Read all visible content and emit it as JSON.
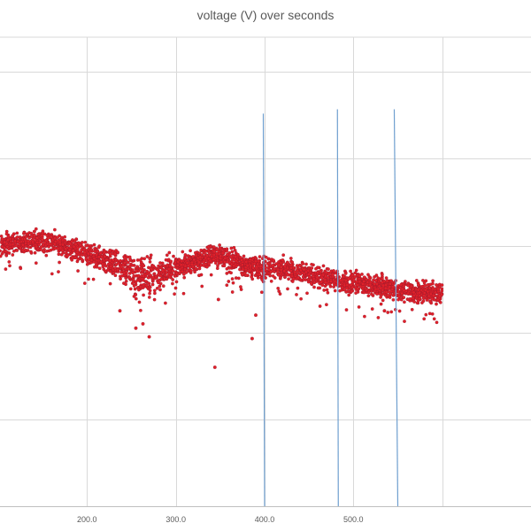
{
  "chart_data": {
    "type": "scatter",
    "title": "voltage (V) over seconds",
    "xlabel": "",
    "ylabel": "",
    "xlim": [
      102,
      700
    ],
    "ylim": [
      0,
      5.4
    ],
    "x_tick_labels": [
      {
        "value": 200,
        "label": "200.0"
      },
      {
        "value": 300,
        "label": "300.0"
      },
      {
        "value": 400,
        "label": "400.0"
      },
      {
        "value": 500,
        "label": "500.0"
      }
    ],
    "x_gridlines": [
      100,
      200,
      300,
      400,
      500,
      600
    ],
    "y_gridlines": [
      1,
      2,
      3,
      4,
      5
    ],
    "grid": true,
    "legend": "none",
    "series": [
      {
        "color": "#e0202a",
        "marker": "circle",
        "band": [
          {
            "x": 102,
            "y": 3.0,
            "spread": 0.12
          },
          {
            "x": 130,
            "y": 3.04,
            "spread": 0.12
          },
          {
            "x": 160,
            "y": 3.04,
            "spread": 0.12
          },
          {
            "x": 180,
            "y": 2.98,
            "spread": 0.12
          },
          {
            "x": 210,
            "y": 2.88,
            "spread": 0.12
          },
          {
            "x": 235,
            "y": 2.78,
            "spread": 0.14
          },
          {
            "x": 255,
            "y": 2.66,
            "spread": 0.22
          },
          {
            "x": 272,
            "y": 2.62,
            "spread": 0.22
          },
          {
            "x": 290,
            "y": 2.72,
            "spread": 0.14
          },
          {
            "x": 320,
            "y": 2.82,
            "spread": 0.12
          },
          {
            "x": 342,
            "y": 2.9,
            "spread": 0.12
          },
          {
            "x": 360,
            "y": 2.83,
            "spread": 0.12
          },
          {
            "x": 390,
            "y": 2.75,
            "spread": 0.12
          },
          {
            "x": 420,
            "y": 2.73,
            "spread": 0.12
          },
          {
            "x": 470,
            "y": 2.62,
            "spread": 0.12
          },
          {
            "x": 520,
            "y": 2.55,
            "spread": 0.12
          },
          {
            "x": 560,
            "y": 2.48,
            "spread": 0.12
          },
          {
            "x": 600,
            "y": 2.45,
            "spread": 0.12
          }
        ],
        "outliers": [
          {
            "x": 344,
            "y": 1.6
          },
          {
            "x": 386,
            "y": 1.93
          },
          {
            "x": 270,
            "y": 1.95
          },
          {
            "x": 255,
            "y": 2.05
          },
          {
            "x": 263,
            "y": 2.1
          },
          {
            "x": 237,
            "y": 2.25
          },
          {
            "x": 348,
            "y": 2.38
          },
          {
            "x": 535,
            "y": 2.25
          },
          {
            "x": 390,
            "y": 2.2
          }
        ]
      }
    ],
    "vertical_lines": [
      {
        "x_top": 398.5,
        "x_bottom": 400,
        "y_top": 4.52,
        "color": "#6f9fcf"
      },
      {
        "x_top": 482,
        "x_bottom": 483,
        "y_top": 4.57,
        "color": "#6f9fcf"
      },
      {
        "x_top": 546,
        "x_bottom": 550,
        "y_top": 4.57,
        "color": "#6f9fcf"
      }
    ]
  }
}
